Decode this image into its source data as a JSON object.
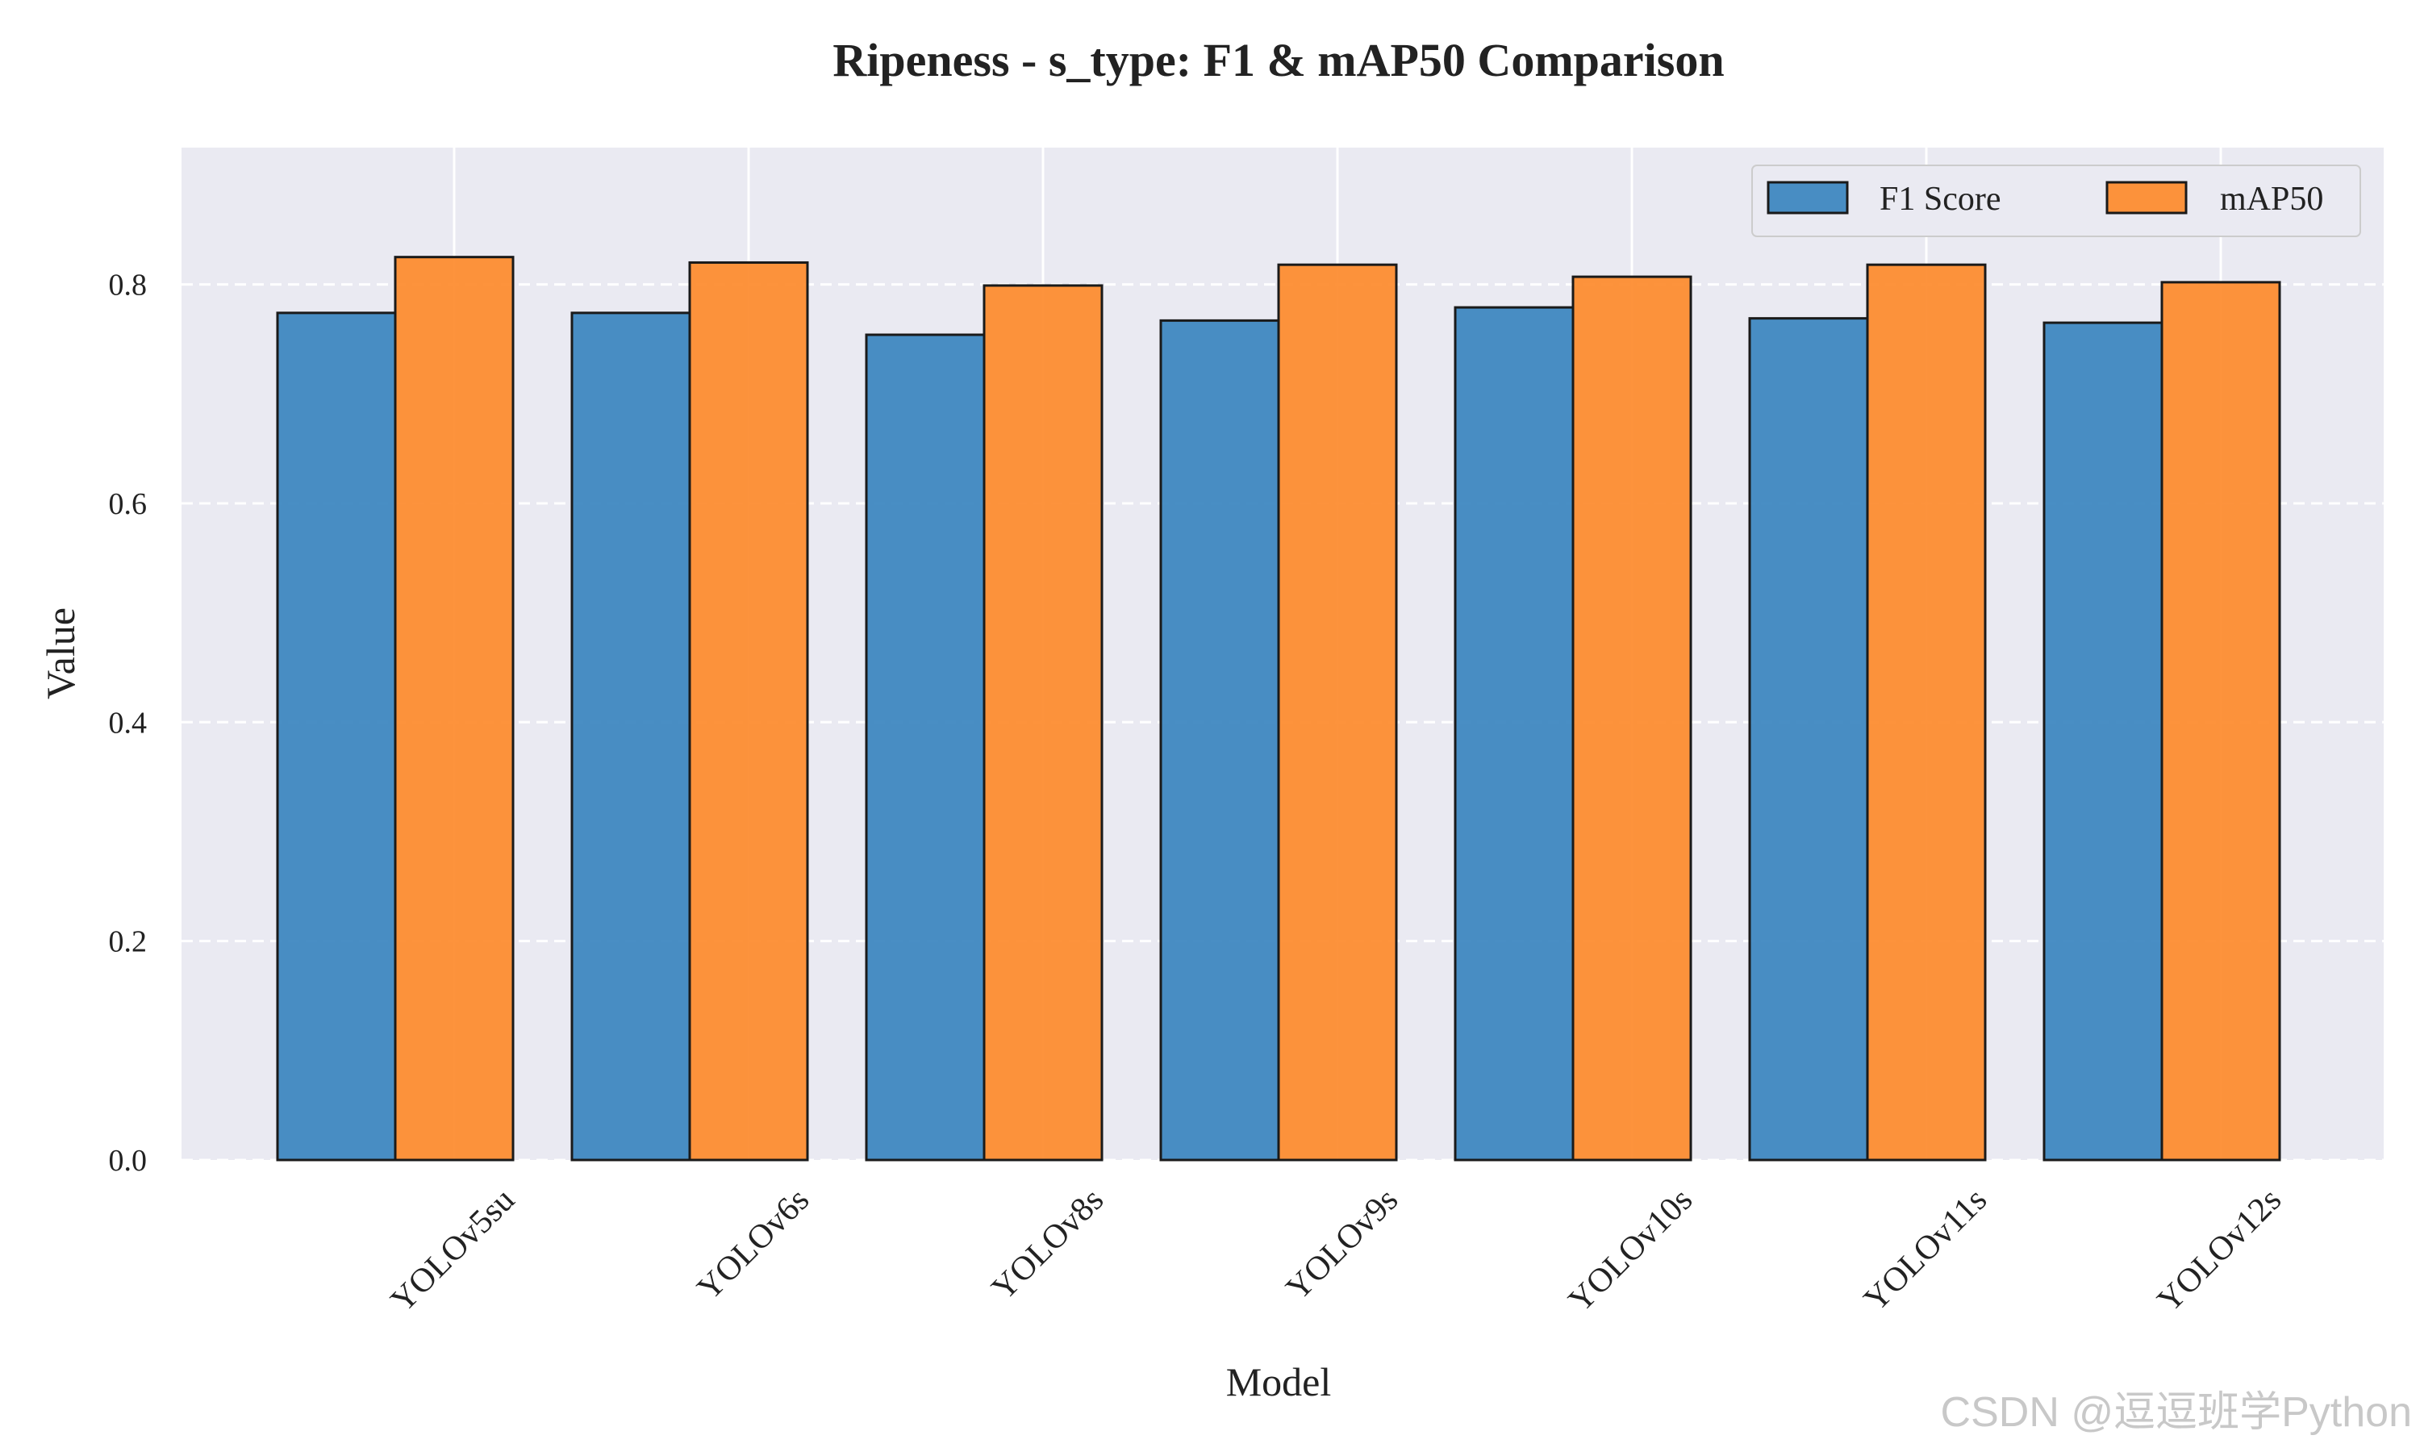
{
  "chart_data": {
    "type": "bar",
    "title": "Ripeness - s_type: F1 & mAP50 Comparison",
    "xlabel": "Model",
    "ylabel": "Value",
    "categories": [
      "YOLOv5su",
      "YOLOv6s",
      "YOLOv8s",
      "YOLOv9s",
      "YOLOv10s",
      "YOLOv11s",
      "YOLOv12s"
    ],
    "series": [
      {
        "name": "F1 Score",
        "color": "#3a84bf",
        "values": [
          0.774,
          0.774,
          0.754,
          0.767,
          0.779,
          0.769,
          0.765
        ]
      },
      {
        "name": "mAP50",
        "color": "#fd8a2b",
        "values": [
          0.825,
          0.82,
          0.799,
          0.818,
          0.807,
          0.818,
          0.802
        ]
      }
    ],
    "ylim": [
      0,
      0.925
    ],
    "yticks": [
      0.0,
      0.2,
      0.4,
      0.6,
      0.8
    ],
    "ytick_labels": [
      "0.0",
      "0.2",
      "0.4",
      "0.6",
      "0.8"
    ],
    "grid": true,
    "legend_position": "top-right",
    "background_color": "#eaeaf2"
  },
  "watermark": "CSDN @逗逗班学Python"
}
